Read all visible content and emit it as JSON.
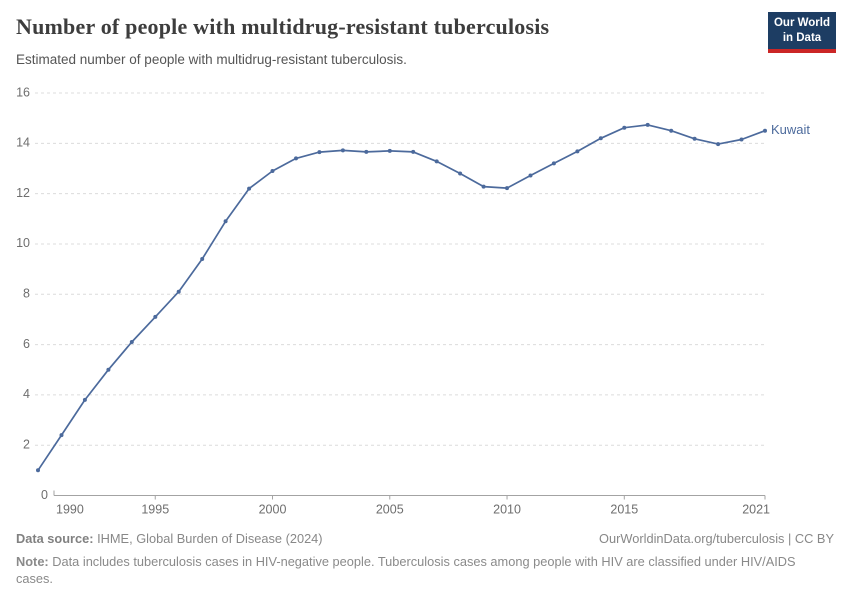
{
  "header": {
    "title": "Number of people with multidrug-resistant tuberculosis",
    "subtitle": "Estimated number of people with multidrug-resistant tuberculosis.",
    "logo": {
      "line1": "Our World",
      "line2": "in Data",
      "bg_color": "#1d3d63",
      "accent_color": "#cb2626"
    }
  },
  "chart_data": {
    "type": "line",
    "title": "Number of people with multidrug-resistant tuberculosis",
    "xlabel": "",
    "ylabel": "",
    "xlim": [
      1990,
      2021
    ],
    "ylim": [
      0,
      16
    ],
    "grid": "horizontal-dashed",
    "legend_position": "end-of-line",
    "x_ticks": [
      1990,
      1995,
      2000,
      2005,
      2010,
      2015,
      2021
    ],
    "y_ticks": [
      0,
      2,
      4,
      6,
      8,
      10,
      12,
      14,
      16
    ],
    "x": [
      1990,
      1991,
      1992,
      1993,
      1994,
      1995,
      1996,
      1997,
      1998,
      1999,
      2000,
      2001,
      2002,
      2003,
      2004,
      2005,
      2006,
      2007,
      2008,
      2009,
      2010,
      2011,
      2012,
      2013,
      2014,
      2015,
      2016,
      2017,
      2018,
      2019,
      2020,
      2021
    ],
    "series": [
      {
        "name": "Kuwait",
        "color": "#4c6a9c",
        "values": [
          1.0,
          2.4,
          3.8,
          5.0,
          6.1,
          7.1,
          8.1,
          9.4,
          10.9,
          12.2,
          12.9,
          13.4,
          13.65,
          13.72,
          13.66,
          13.7,
          13.66,
          13.28,
          12.8,
          12.28,
          12.22,
          12.72,
          13.2,
          13.68,
          14.2,
          14.62,
          14.73,
          14.5,
          14.18,
          13.97,
          14.15,
          14.5
        ]
      }
    ],
    "colors": {
      "gridline": "#dcdcdc",
      "axis": "#a3a3a3",
      "tick_label": "#6e6e6e"
    }
  },
  "footer": {
    "source_label": "Data source:",
    "source_text": " IHME, Global Burden of Disease (2024)",
    "rights": "OurWorldinData.org/tuberculosis | CC BY",
    "note_label": "Note:",
    "note_text": " Data includes tuberculosis cases in HIV-negative people. Tuberculosis cases among people with HIV are classified under HIV/AIDS cases."
  }
}
